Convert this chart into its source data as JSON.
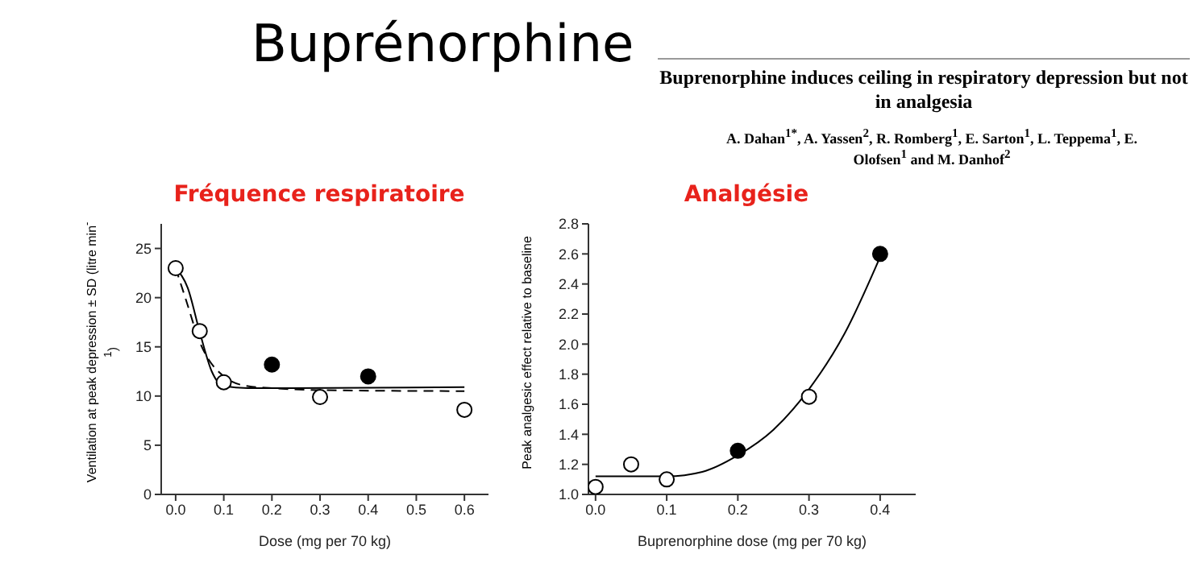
{
  "chart_data": [
    {
      "type": "scatter",
      "title": "Fréquence respiratoire",
      "xlabel": "Dose (mg per 70 kg)",
      "ylabel": "Ventilation at peak depression ± SD (litre min$^{-1}$)",
      "xlim": [
        -0.03,
        0.65
      ],
      "ylim": [
        0,
        27.5
      ],
      "xticks": [
        {
          "value": 0,
          "label": "0.0"
        },
        0.1,
        0.2,
        0.3,
        0.4,
        0.5,
        0.6
      ],
      "yticks": [
        0,
        5,
        10,
        15,
        20,
        25
      ],
      "grid": false,
      "legend": false,
      "annotations": [
        "Buprénorphine",
        "Buprenorphine induces ceiling in respiratory depression but not in analgesia",
        "A. Dahan$^{1*}$, A. Yassen$^{2}$, R. Romberg$^{1}$, E. Sarton$^{1}$, L. Teppema$^{1}$, E. Olofsen$^{1}$ and M. Danhof$^{2}$"
      ],
      "series": [
        {
          "type": "line",
          "color": "#000000",
          "line_style": "solid",
          "marker": "none",
          "x": [
            0,
            0.025,
            0.05,
            0.075,
            0.1,
            0.15,
            0.6
          ],
          "values": [
            23,
            21,
            16.5,
            12.5,
            11,
            10.8,
            10.9
          ]
        },
        {
          "type": "line",
          "color": "#000000",
          "line_style": "dashed",
          "marker": "none",
          "x": [
            0,
            0.02,
            0.05,
            0.1,
            0.15,
            0.2,
            0.3,
            0.6
          ],
          "values": [
            23,
            20,
            15.5,
            12,
            11,
            10.8,
            10.6,
            10.5
          ]
        },
        {
          "type": "scatter",
          "color": "#ffffff",
          "marker": "circle",
          "x": [
            0,
            0.05,
            0.1,
            0.3,
            0.6
          ],
          "values": [
            23,
            16.6,
            11.4,
            9.9,
            8.6
          ]
        },
        {
          "type": "scatter",
          "color": "#000000",
          "marker": "circle",
          "x": [
            0.2,
            0.4
          ],
          "values": [
            13.2,
            12
          ]
        }
      ]
    },
    {
      "type": "scatter",
      "title": "Analgésie",
      "xlabel": "Buprenorphine dose (mg per 70 kg)",
      "ylabel": "Peak analgesic effect relative to baseline",
      "xlim": [
        -0.01,
        0.45
      ],
      "ylim": [
        1,
        2.8
      ],
      "xticks": [
        {
          "value": 0,
          "label": "0.0"
        },
        0.1,
        0.2,
        0.3,
        0.4
      ],
      "yticks": [
        {
          "value": 1,
          "label": "1.0"
        },
        1.2,
        1.4,
        1.6,
        1.8,
        {
          "value": 2,
          "label": "2.0"
        },
        2.2,
        2.4,
        2.6,
        2.8
      ],
      "grid": false,
      "legend": false,
      "series": [
        {
          "type": "line",
          "color": "#000000",
          "line_style": "solid",
          "marker": "none",
          "x": [
            0,
            0.1,
            0.15,
            0.2,
            0.25,
            0.3,
            0.35,
            0.4
          ],
          "values": [
            1.12,
            1.12,
            1.15,
            1.26,
            1.43,
            1.7,
            2.07,
            2.58
          ]
        },
        {
          "type": "scatter",
          "color": "#ffffff",
          "marker": "circle",
          "x": [
            0,
            0.05,
            0.1,
            0.3
          ],
          "values": [
            1.05,
            1.2,
            1.1,
            1.65
          ]
        },
        {
          "type": "scatter",
          "color": "#000000",
          "marker": "circle",
          "x": [
            0.2,
            0.4
          ],
          "values": [
            1.29,
            2.6
          ]
        }
      ]
    }
  ]
}
